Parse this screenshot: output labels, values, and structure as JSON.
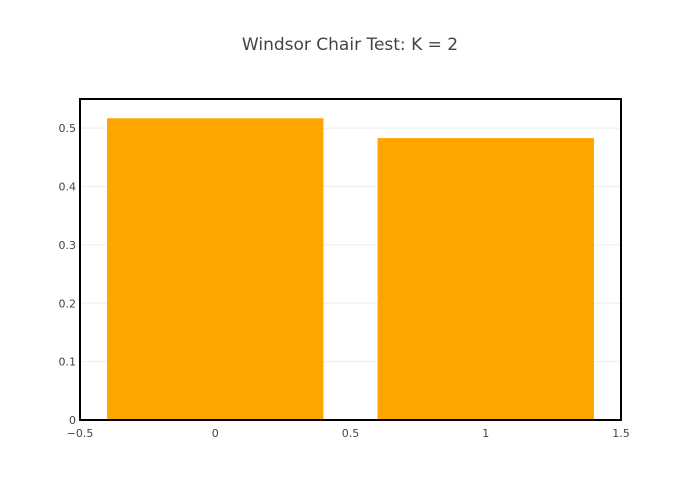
{
  "chart_data": {
    "type": "bar",
    "title": "Windsor Chair Test: K = 2",
    "xlabel": "",
    "ylabel": "",
    "x": [
      0,
      1
    ],
    "values": [
      0.517,
      0.483
    ],
    "bar_width": 0.8,
    "xlim": [
      -0.5,
      1.5
    ],
    "ylim": [
      0,
      0.55
    ],
    "x_ticks": [
      -0.5,
      0,
      0.5,
      1,
      1.5
    ],
    "x_tick_labels": [
      "−0.5",
      "0",
      "0.5",
      "1",
      "1.5"
    ],
    "y_ticks": [
      0,
      0.1,
      0.2,
      0.3,
      0.4,
      0.5
    ],
    "y_tick_labels": [
      "0",
      "0.1",
      "0.2",
      "0.3",
      "0.4",
      "0.5"
    ],
    "grid": true,
    "legend": false,
    "bar_color": "#ffa500",
    "frame_color": "#000000",
    "grid_color": "#eeeeee",
    "text_color": "#444444"
  }
}
